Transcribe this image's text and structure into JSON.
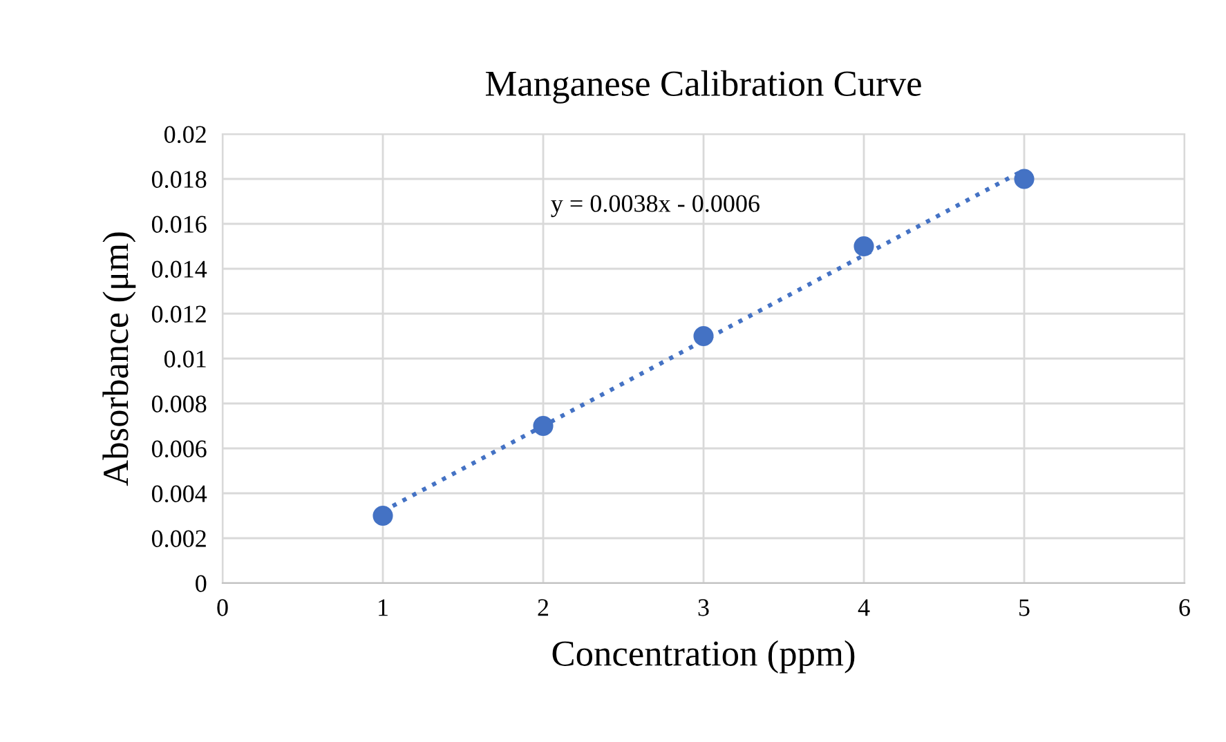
{
  "chart_data": {
    "type": "scatter",
    "title": "Manganese Calibration Curve",
    "xlabel": "Concentration (ppm)",
    "ylabel": "Absorbance (μm)",
    "x": [
      1,
      2,
      3,
      4,
      5
    ],
    "series": [
      {
        "color": "#4472c4",
        "values": [
          0.003,
          0.007,
          0.011,
          0.015,
          0.018
        ],
        "marker": "circle"
      },
      {
        "type": "line",
        "color": "#4472c4",
        "x": [
          1,
          5
        ],
        "values": [
          0.0032,
          0.0184
        ],
        "line_style": "dotted",
        "marker": "none"
      }
    ],
    "annotations": [
      "y = 0.0038x - 0.0006"
    ],
    "xlim": [
      0,
      6
    ],
    "xticks": [
      0,
      1,
      2,
      3,
      4,
      5,
      6
    ],
    "ylim": [
      0,
      0.02
    ],
    "yticks": [
      {
        "value": 0,
        "label": "0"
      },
      0.002,
      0.004,
      0.006,
      0.008,
      {
        "value": 0.01,
        "label": "0.01"
      },
      0.012,
      0.014,
      0.016,
      0.018,
      {
        "value": 0.02,
        "label": "0.02"
      }
    ],
    "grid": true,
    "legend": false
  }
}
